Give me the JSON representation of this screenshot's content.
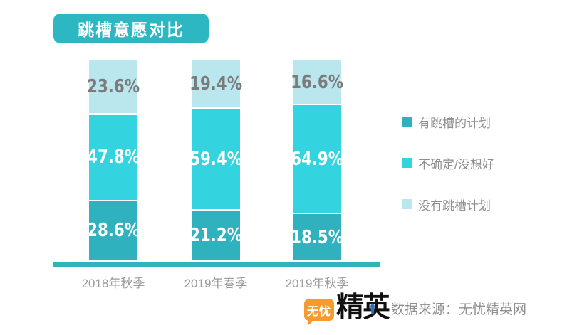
{
  "title": "跳槽意愿对比",
  "source_text": "数据来源：无忧精英网",
  "logo": {
    "bubble_text": "无忧",
    "main_text": "精英"
  },
  "colors": {
    "accent_teal": "#2cb7c2",
    "axis_teal": "#2fb3bd",
    "logo_orange": "#f79b2e",
    "logo_tie_blue": "#3a6fb8",
    "label_gray": "#8f8f8f"
  },
  "chart_data": {
    "type": "bar",
    "subtype": "stacked-percentage-column",
    "title": "跳槽意愿对比",
    "categories": [
      "2018年秋季",
      "2019年春季",
      "2019年秋季"
    ],
    "series": [
      {
        "name": "有跳槽的计划",
        "values": [
          28.6,
          21.2,
          18.5
        ],
        "color": "#2fb2bd",
        "label_color": "#ffffff"
      },
      {
        "name": "不确定/没想好",
        "values": [
          47.8,
          59.4,
          64.9
        ],
        "color": "#33d4df",
        "label_color": "#ffffff"
      },
      {
        "name": "没有跳槽计划",
        "values": [
          23.6,
          19.4,
          16.6
        ],
        "color": "#bae6ee",
        "label_color": "#7b7b7b"
      }
    ],
    "value_suffix": "%",
    "ylim": [
      0,
      100
    ],
    "grid": false,
    "legend_position": "right",
    "stack_order": "bottom-to-top",
    "xlabel": "",
    "ylabel": ""
  }
}
